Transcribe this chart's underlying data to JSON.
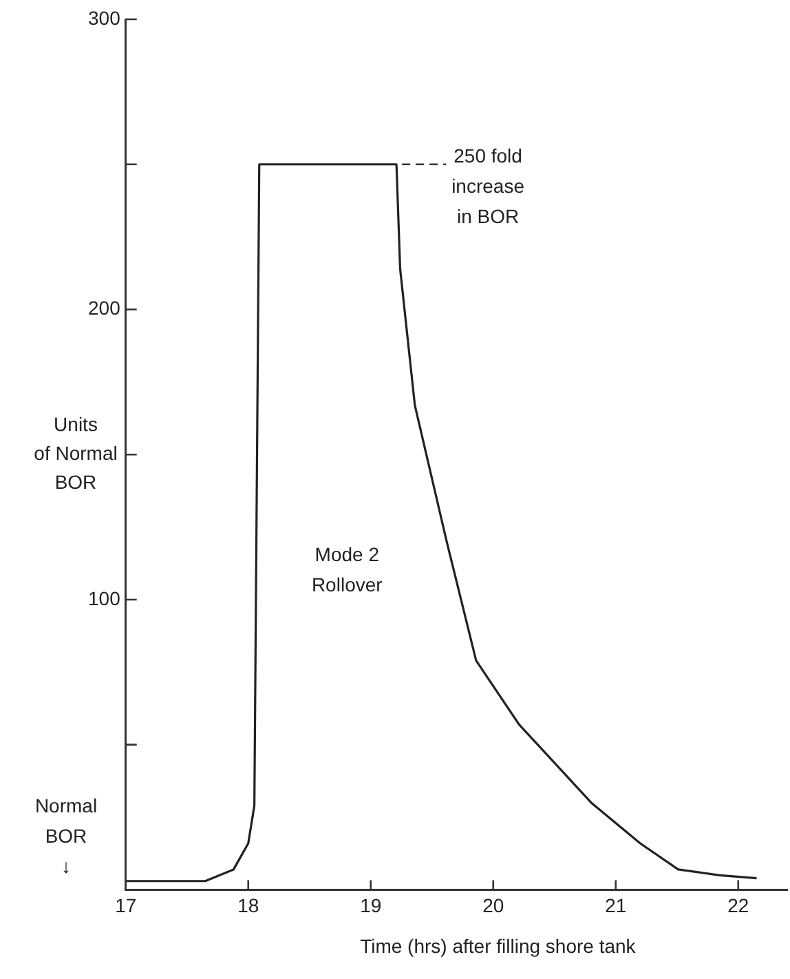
{
  "chart_data": {
    "type": "line",
    "xlabel": "Time (hrs) after filling shore tank",
    "ylabel": "Units\nof Normal\nBOR",
    "x": [
      17.0,
      17.65,
      17.88,
      18.0,
      18.05,
      18.09,
      19.21,
      19.24,
      19.36,
      19.62,
      19.86,
      20.21,
      20.8,
      21.2,
      21.51,
      21.85,
      22.15
    ],
    "series": [
      {
        "color": "#222222",
        "values": [
          3,
          3,
          7,
          16,
          29,
          250,
          250,
          214,
          167,
          120,
          79,
          57,
          30,
          16,
          7,
          5,
          4
        ]
      }
    ],
    "xlim": [
      17,
      22.4
    ],
    "xticks": [
      17,
      18,
      19,
      20,
      21,
      22
    ],
    "ylim": [
      0,
      300
    ],
    "yticks": [
      {
        "value": 50,
        "label": null
      },
      100,
      {
        "value": 150,
        "label": null
      },
      200,
      {
        "value": 250,
        "label": null
      },
      300
    ],
    "annotations": [
      {
        "text": "250 fold\nincrease\nin BOR",
        "x": 19.21,
        "y": 250
      },
      "Mode 2\nRollover",
      "Normal\nBOR\n↓"
    ],
    "grid": false,
    "legend": false,
    "marker": "none",
    "line_style": "solid"
  }
}
